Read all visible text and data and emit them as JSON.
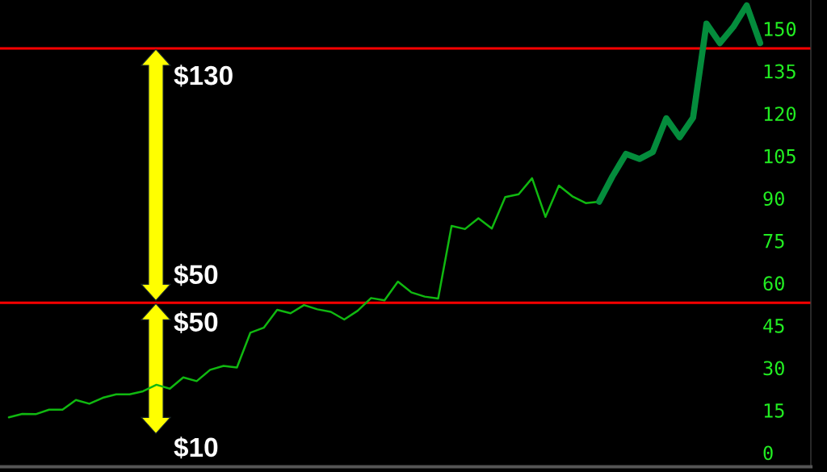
{
  "chart_data": {
    "type": "line",
    "categories": [
      null,
      null,
      null,
      null,
      null,
      null,
      null,
      null,
      null,
      null,
      null,
      null,
      null,
      null,
      null,
      null,
      null,
      null,
      null,
      null,
      null,
      null,
      null,
      null,
      null,
      null,
      null,
      null,
      null,
      null,
      null,
      null,
      null,
      null,
      null,
      null,
      null,
      null,
      null,
      null,
      null,
      null,
      null,
      null,
      null,
      null,
      null,
      null,
      null,
      null,
      null,
      null,
      null,
      null,
      null,
      null,
      null
    ],
    "series": [
      {
        "color": "#10b810",
        "values": [
          12.5,
          13.7,
          13.6,
          15.2,
          15.2,
          18.6,
          17.3,
          19.4,
          20.6,
          20.6,
          21.7,
          24.0,
          22.6,
          26.6,
          25.3,
          29.3,
          30.7,
          30.1,
          42.4,
          44.2,
          50.5,
          49.3,
          52.2,
          50.7,
          49.8,
          47.1,
          50.2,
          54.7,
          53.9,
          60.5,
          56.7,
          55.2,
          54.5,
          80.2,
          79.1,
          82.9,
          79.3,
          90.4,
          91.4,
          97.1,
          83.4,
          94.5,
          90.7,
          88.3,
          88.8,
          null,
          null,
          null,
          null,
          null,
          null,
          null,
          null,
          null,
          null,
          null,
          null
        ]
      },
      {
        "color": "#048c3c",
        "values": [
          null,
          null,
          null,
          null,
          null,
          null,
          null,
          null,
          null,
          null,
          null,
          null,
          null,
          null,
          null,
          null,
          null,
          null,
          null,
          null,
          null,
          null,
          null,
          null,
          null,
          null,
          null,
          null,
          null,
          null,
          null,
          null,
          null,
          null,
          null,
          null,
          null,
          null,
          null,
          null,
          null,
          null,
          null,
          null,
          88.8,
          97.8,
          105.7,
          103.9,
          106.4,
          118.3,
          111.6,
          118.5,
          151.8,
          144.9,
          150.6,
          158.2,
          144.9
        ]
      }
    ],
    "ylim": [
      -5,
      160
    ],
    "yticks": [
      0,
      15,
      30,
      45,
      60,
      75,
      90,
      105,
      120,
      135,
      150
    ],
    "ref_lines": [
      {
        "axis": "y",
        "value": 143,
        "color": "#ff0000"
      },
      {
        "axis": "y",
        "value": 53,
        "color": "#ff0000"
      }
    ],
    "annotations": [
      {
        "text": "$130",
        "y": 143
      },
      {
        "text": "$50",
        "y": 53
      },
      {
        "text": "$50",
        "y": 53
      },
      "$10"
    ],
    "tick_labels": "y",
    "line_style": "solid",
    "marker": "none",
    "grid": false
  }
}
